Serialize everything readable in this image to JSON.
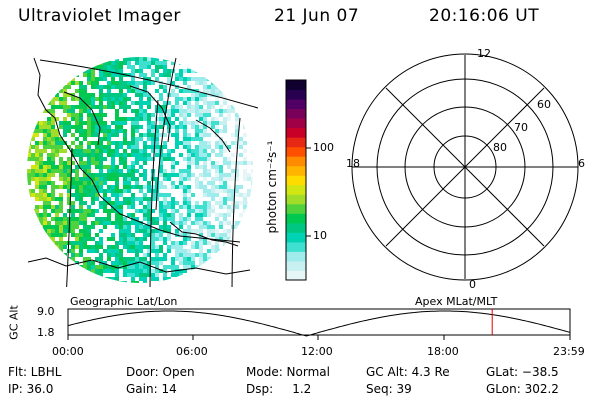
{
  "header": {
    "title": "Ultraviolet Imager",
    "date": "21 Jun 07",
    "time": "20:16:06 UT"
  },
  "colorbar": {
    "unit_label": "photon cm⁻²s⁻¹",
    "ticks": [
      "100",
      "10"
    ],
    "colors": [
      "#e6f5f5",
      "#c8f0f0",
      "#a0ebeb",
      "#40e0d0",
      "#00d2b4",
      "#00c882",
      "#00c850",
      "#50d23c",
      "#a0dc28",
      "#d2e614",
      "#ffdc00",
      "#ffb400",
      "#ff8c00",
      "#ff5000",
      "#e62814",
      "#c80028",
      "#a00046",
      "#78005a",
      "#500064",
      "#280050",
      "#100030"
    ]
  },
  "polar": {
    "mlt_labels": [
      "12",
      "18",
      "6",
      "0"
    ],
    "lat_labels": [
      "60",
      "70",
      "80"
    ]
  },
  "map_labels": {
    "left": "Geographic Lat/Lon",
    "right": "Apex MLat/MLT"
  },
  "orbit": {
    "ylabel": "GC Alt",
    "y_ticks": [
      "9.0",
      "1.8"
    ],
    "x_ticks": [
      "00:00",
      "06:00",
      "12:00",
      "18:00",
      "23:59"
    ],
    "current_time_fraction": 0.845
  },
  "info": {
    "row1": [
      "Flt: LBHL",
      "Door: Open",
      "Mode: Normal",
      "GC Alt: 4.3 Re",
      "GLat: −38.5"
    ],
    "row2": [
      "IP: 36.0",
      "Gain: 14",
      "Dsp:     1.2",
      "Seq: 39",
      "GLon: 302.2"
    ]
  },
  "accent": {
    "marker": "#e00000"
  }
}
